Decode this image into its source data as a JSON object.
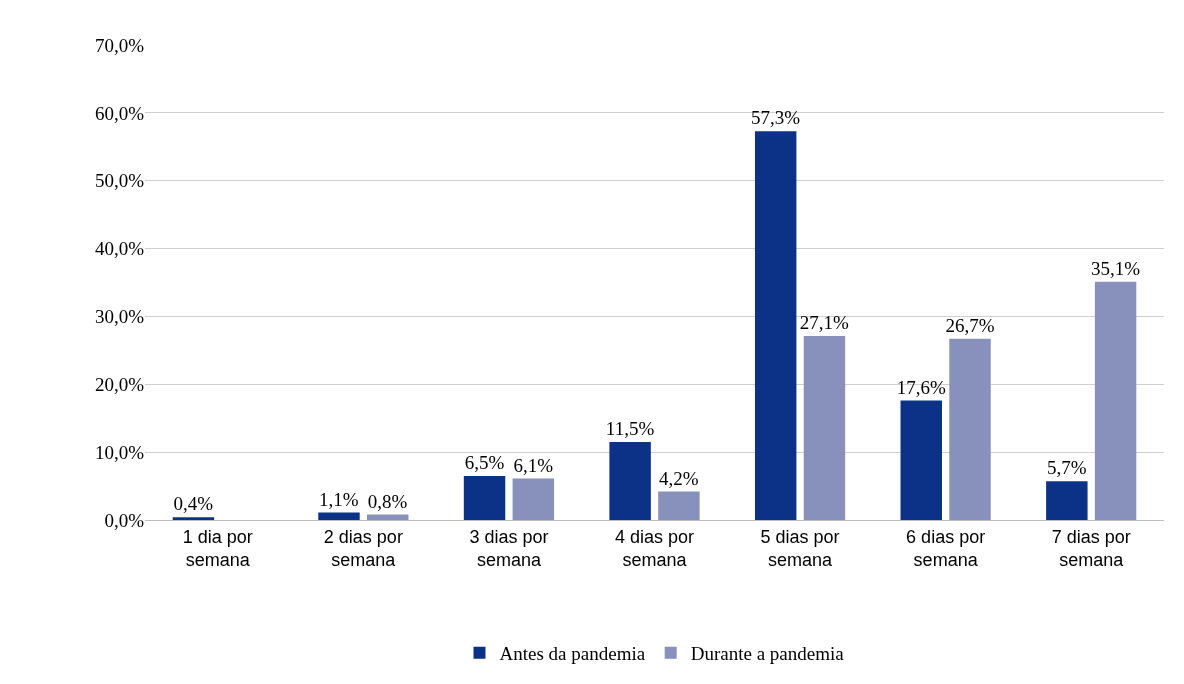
{
  "chart_data": {
    "type": "bar",
    "categories": [
      "1 dia por semana",
      "2 dias por semana",
      "3 dias por semana",
      "4 dias por semana",
      "5 dias por semana",
      "6 dias por semana",
      "7 dias por semana"
    ],
    "series": [
      {
        "name": "Antes da pandemia",
        "color": "#0b3286",
        "values": [
          0.4,
          1.1,
          6.5,
          11.5,
          57.3,
          17.6,
          5.7
        ],
        "value_labels": [
          "0,4%",
          "1,1%",
          "6,5%",
          "11,5%",
          "57,3%",
          "17,6%",
          "5,7%"
        ]
      },
      {
        "name": "Durante a pandemia",
        "color": "#8891bb",
        "values": [
          null,
          0.8,
          6.1,
          4.2,
          27.1,
          26.7,
          35.1
        ],
        "value_labels": [
          null,
          "0,8%",
          "6,1%",
          "4,2%",
          "27,1%",
          "26,7%",
          "35,1%"
        ]
      }
    ],
    "ylim": [
      0,
      70
    ],
    "yticks": [
      {
        "value": 0,
        "label": "0,0%"
      },
      {
        "value": 10,
        "label": "10,0%"
      },
      {
        "value": 20,
        "label": "20,0%"
      },
      {
        "value": 30,
        "label": "30,0%"
      },
      {
        "value": 40,
        "label": "40,0%"
      },
      {
        "value": 50,
        "label": "50,0%"
      },
      {
        "value": 60,
        "label": "60,0%"
      },
      {
        "value": 70,
        "label": "70,0%"
      }
    ],
    "grid": "y",
    "legend": "bottom"
  }
}
